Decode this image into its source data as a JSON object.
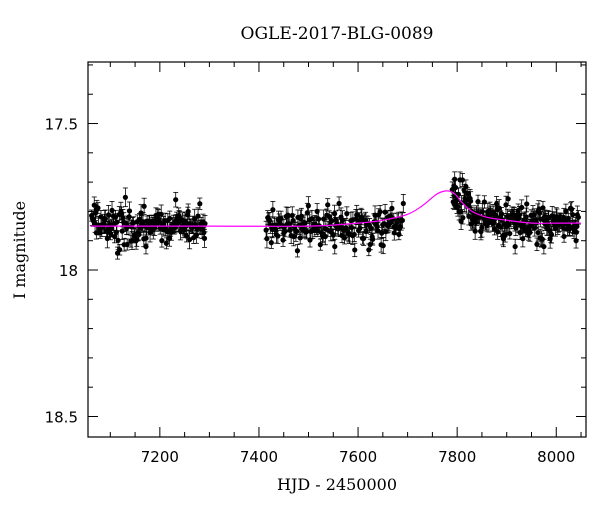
{
  "chart_data": {
    "type": "scatter",
    "title": "OGLE-2017-BLG-0089",
    "xlabel": "HJD - 2450000",
    "ylabel": "I magnitude",
    "xlim": [
      7055,
      8060
    ],
    "ylim": [
      18.57,
      17.29
    ],
    "y_inverted": true,
    "x_ticks": [
      7200,
      7400,
      7600,
      7800,
      8000
    ],
    "y_ticks": [
      17.5,
      18,
      18.5
    ],
    "y_tick_labels": [
      "17.5",
      "18",
      "18.5"
    ],
    "colors": {
      "points": "#000000",
      "model": "#ff00ff"
    },
    "model": {
      "name": "",
      "x": [
        7060,
        7300,
        7500,
        7600,
        7650,
        7700,
        7730,
        7760,
        7780,
        7795,
        7810,
        7830,
        7860,
        7900,
        7950,
        8000,
        8050
      ],
      "y": [
        17.85,
        17.85,
        17.85,
        17.84,
        17.83,
        17.81,
        17.78,
        17.74,
        17.73,
        17.74,
        17.77,
        17.8,
        17.82,
        17.83,
        17.84,
        17.84,
        17.84
      ]
    },
    "segments": [
      {
        "x_range": [
          7062,
          7292
        ],
        "baseline": 17.85,
        "peak": null,
        "count": 150,
        "scatter": 0.03
      },
      {
        "x_range": [
          7414,
          7692
        ],
        "baseline": 17.85,
        "peak": null,
        "count": 160,
        "scatter": 0.03
      },
      {
        "x_range": [
          7790,
          8045
        ],
        "baseline": 17.84,
        "peak": {
          "t0": 7785,
          "amp": 0.12,
          "tau": 45
        },
        "count": 190,
        "scatter": 0.03
      }
    ],
    "outliers": [
      {
        "x": 7172,
        "y": 17.92
      },
      {
        "x": 7232,
        "y": 17.76
      },
      {
        "x": 7553,
        "y": 17.92
      },
      {
        "x": 7795,
        "y": 17.69
      },
      {
        "x": 7917,
        "y": 17.92
      },
      {
        "x": 7975,
        "y": 17.92
      },
      {
        "x": 8040,
        "y": 17.9
      }
    ]
  }
}
